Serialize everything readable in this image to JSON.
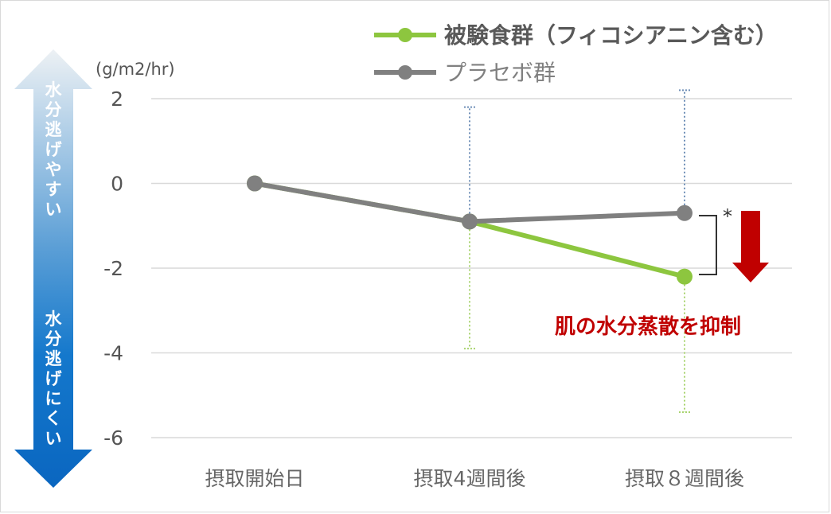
{
  "chart_data": {
    "type": "line",
    "categories": [
      "摂取開始日",
      "摂取4週間後",
      "摂取８週間後"
    ],
    "ylim": [
      -6,
      2
    ],
    "yticks": [
      2,
      0,
      -2,
      -4,
      -6
    ],
    "unit_label": "(g/m2/hr)",
    "grid": true,
    "legend_position": "top-right",
    "series": [
      {
        "name": "被験食群（フィコシアニン含む）",
        "color": "#8dc63f",
        "values": [
          0,
          -0.9,
          -2.2
        ],
        "error_bars": [
          null,
          [
            -3.9,
            null
          ],
          [
            -5.4,
            null
          ]
        ]
      },
      {
        "name": "プラセボ群",
        "color": "#808080",
        "values": [
          0,
          -0.9,
          -0.7
        ],
        "error_bars": [
          null,
          [
            null,
            1.8
          ],
          [
            null,
            2.2
          ]
        ]
      }
    ],
    "significance_marker": "*",
    "annotation": "肌の水分蒸散を抑制",
    "side_labels": {
      "top": [
        "水",
        "分",
        "逃",
        "げ",
        "や",
        "す",
        "い"
      ],
      "bottom": [
        "水",
        "分",
        "逃",
        "げ",
        "に",
        "く",
        "い"
      ]
    }
  },
  "colors": {
    "grid": "#d9d9d9",
    "test_series": "#8dc63f",
    "placebo_series": "#808080",
    "test_error": "#a9d46f",
    "placebo_error": "#6f8fb7",
    "annotation": "#c00000",
    "arrow_top": "#e9eef2",
    "arrow_bottom": "#0a6dc4"
  }
}
